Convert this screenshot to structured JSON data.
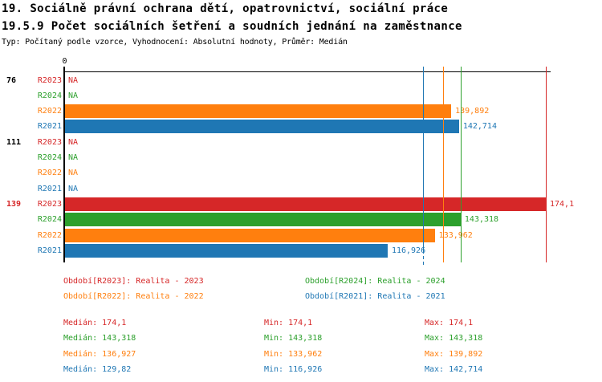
{
  "title": {
    "line1": "19. Sociálně právní ochrana dětí, opatrovnictví, sociální práce",
    "line2": "19.5.9 Počet sociálních šetření a soudních jednání na zaměstnance",
    "line3": "Typ: Počítaný podle vzorce, Vyhodnocení: Absolutní hodnoty, Průměr: Medián"
  },
  "colors": {
    "red": "#d62728",
    "green": "#2ca02c",
    "orange": "#ff7f0e",
    "blue": "#1f77b4",
    "axis": "#000000"
  },
  "axis": {
    "zero_label": "0"
  },
  "chart_data": {
    "type": "bar",
    "orientation": "horizontal",
    "value_axis": {
      "min": 0,
      "max": 174.1,
      "tick_labels": [
        "0"
      ],
      "position": "top"
    },
    "groups": [
      {
        "label": "76",
        "label_color": "black",
        "rows": [
          {
            "series": "R2023",
            "color": "red",
            "value": null,
            "display": "NA"
          },
          {
            "series": "R2024",
            "color": "green",
            "value": null,
            "display": "NA"
          },
          {
            "series": "R2022",
            "color": "orange",
            "value": 139.892,
            "display": "139,892"
          },
          {
            "series": "R2021",
            "color": "blue",
            "value": 142.714,
            "display": "142,714"
          }
        ]
      },
      {
        "label": "111",
        "label_color": "black",
        "rows": [
          {
            "series": "R2023",
            "color": "red",
            "value": null,
            "display": "NA"
          },
          {
            "series": "R2024",
            "color": "green",
            "value": null,
            "display": "NA"
          },
          {
            "series": "R2022",
            "color": "orange",
            "value": null,
            "display": "NA"
          },
          {
            "series": "R2021",
            "color": "blue",
            "value": null,
            "display": "NA"
          }
        ]
      },
      {
        "label": "139",
        "label_color": "red",
        "rows": [
          {
            "series": "R2023",
            "color": "red",
            "value": 174.1,
            "display": "174,1"
          },
          {
            "series": "R2024",
            "color": "green",
            "value": 143.318,
            "display": "143,318"
          },
          {
            "series": "R2022",
            "color": "orange",
            "value": 133.962,
            "display": "133,962"
          },
          {
            "series": "R2021",
            "color": "blue",
            "value": 116.926,
            "display": "116,926"
          }
        ]
      }
    ],
    "median_lines": [
      {
        "color": "blue",
        "value": 129.82
      },
      {
        "color": "orange",
        "value": 136.927
      },
      {
        "color": "green",
        "value": 143.318
      },
      {
        "color": "red",
        "value": 174.1
      }
    ]
  },
  "legend": {
    "items": [
      {
        "text": "Období[R2023]: Realita - 2023",
        "color": "red"
      },
      {
        "text": "Období[R2024]: Realita - 2024",
        "color": "green"
      },
      {
        "text": "Období[R2022]: Realita - 2022",
        "color": "orange"
      },
      {
        "text": "Období[R2021]: Realita - 2021",
        "color": "blue"
      }
    ]
  },
  "stats": {
    "labels": {
      "median": "Medián:",
      "min": "Min:",
      "max": "Max:"
    },
    "rows": [
      {
        "color": "red",
        "median": "174,1",
        "min": "174,1",
        "max": "174,1"
      },
      {
        "color": "green",
        "median": "143,318",
        "min": "143,318",
        "max": "143,318"
      },
      {
        "color": "orange",
        "median": "136,927",
        "min": "133,962",
        "max": "139,892"
      },
      {
        "color": "blue",
        "median": "129,82",
        "min": "116,926",
        "max": "142,714"
      }
    ]
  }
}
